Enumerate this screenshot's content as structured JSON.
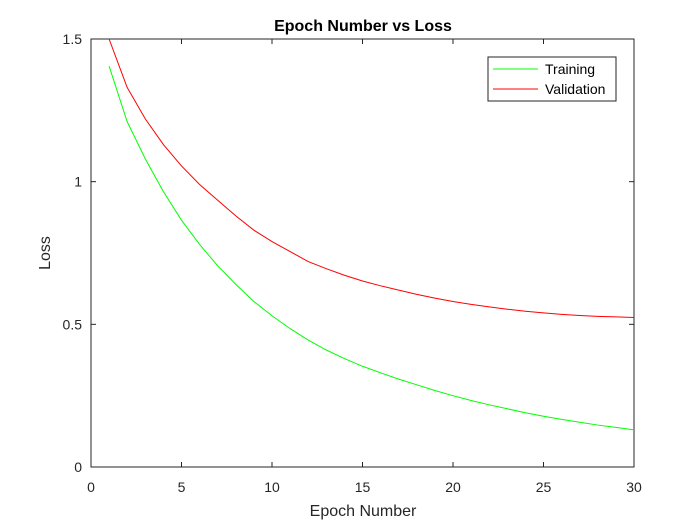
{
  "chart_data": {
    "type": "line",
    "title": "Epoch Number vs Loss",
    "xlabel": "Epoch Number",
    "ylabel": "Loss",
    "xlim": [
      0,
      30
    ],
    "ylim": [
      0,
      1.5
    ],
    "xticks": [
      0,
      5,
      10,
      15,
      20,
      25,
      30
    ],
    "yticks": [
      0,
      0.5,
      1,
      1.5
    ],
    "xtick_labels": [
      "0",
      "5",
      "10",
      "15",
      "20",
      "25",
      "30"
    ],
    "ytick_labels": [
      "0",
      "0.5",
      "1",
      "1.5"
    ],
    "grid": false,
    "legend_position": "top-right",
    "x": [
      1,
      2,
      3,
      4,
      5,
      6,
      7,
      8,
      9,
      10,
      11,
      12,
      13,
      14,
      15,
      16,
      17,
      18,
      19,
      20,
      21,
      22,
      23,
      24,
      25,
      26,
      27,
      28,
      29,
      30
    ],
    "series": [
      {
        "name": "Training",
        "color": "#00ff00",
        "values": [
          1.405,
          1.21,
          1.08,
          0.965,
          0.865,
          0.78,
          0.705,
          0.64,
          0.58,
          0.53,
          0.485,
          0.445,
          0.41,
          0.38,
          0.353,
          0.33,
          0.308,
          0.288,
          0.268,
          0.25,
          0.233,
          0.218,
          0.204,
          0.19,
          0.178,
          0.167,
          0.157,
          0.147,
          0.139,
          0.13
        ]
      },
      {
        "name": "Validation",
        "color": "#ff0000",
        "values": [
          1.5,
          1.33,
          1.22,
          1.13,
          1.055,
          0.99,
          0.935,
          0.88,
          0.83,
          0.79,
          0.755,
          0.72,
          0.695,
          0.672,
          0.652,
          0.635,
          0.62,
          0.605,
          0.592,
          0.58,
          0.57,
          0.561,
          0.553,
          0.546,
          0.54,
          0.535,
          0.531,
          0.528,
          0.526,
          0.524
        ]
      }
    ]
  }
}
